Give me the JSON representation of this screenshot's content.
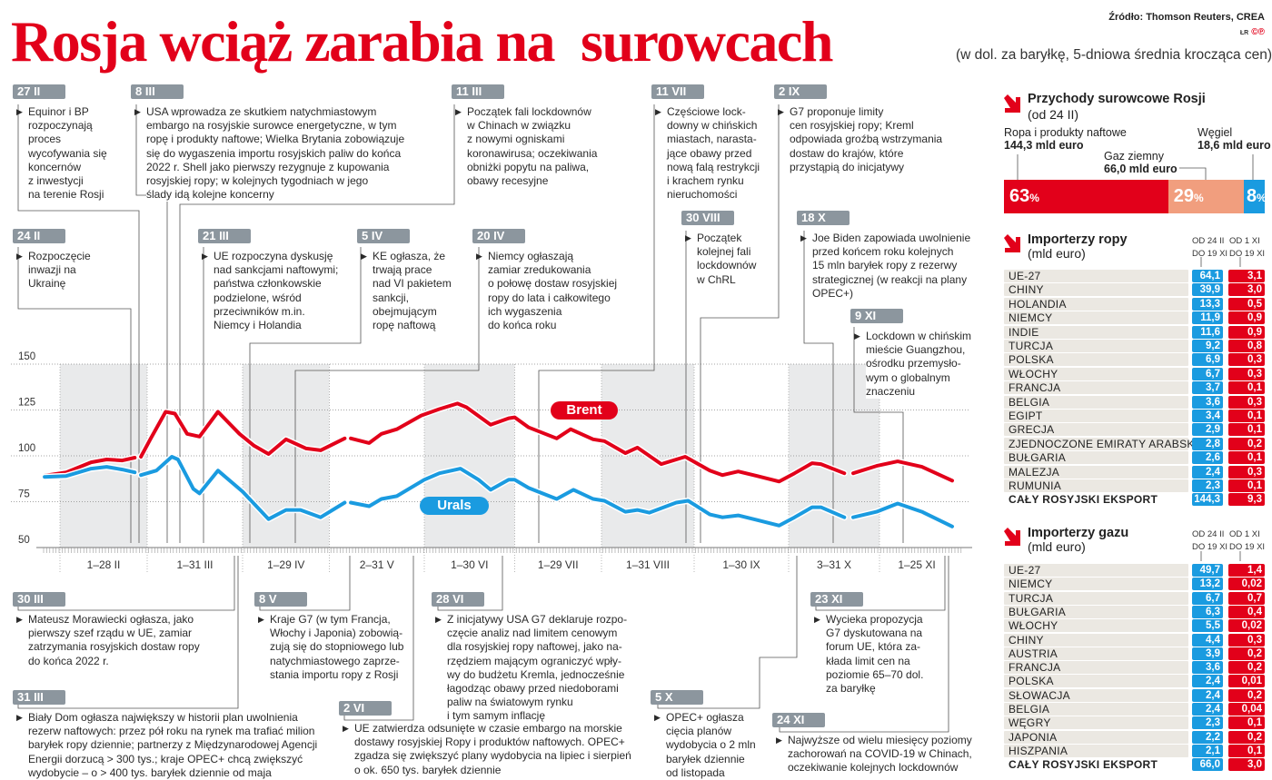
{
  "title": "Rosja wciąż zarabia na  surowcach",
  "subtitle": "(w dol. za baryłkę, 5-dniowa średnia krocząca cen)",
  "source": "Źródło: Thomson Reuters, CREA",
  "logo": {
    "initials": "ŁR",
    "mark": "©℗"
  },
  "colors": {
    "brent": "#e2001a",
    "urals": "#1a9be0",
    "gas": "#f19e7e",
    "tag": "#8c969e"
  },
  "chart_data": {
    "type": "line",
    "title": "",
    "xlabel": "",
    "ylabel": "",
    "ylim": [
      50,
      150
    ],
    "yticks": [
      "150",
      "125",
      "100",
      "75",
      "50"
    ],
    "grid": true,
    "month_labels": [
      "1–28 II",
      "1–31 III",
      "1–29 IV",
      "2–31 V",
      "1–30 VI",
      "1–29 VII",
      "1–31 VIII",
      "1–30 IX",
      "3–31 X",
      "1–25 XI"
    ],
    "series": [
      {
        "name": "Brent",
        "color": "#e2001a",
        "segments": [
          [
            [
              "27.01",
              89.2
            ],
            [
              "03.02",
              91
            ],
            [
              "11.02",
              96.5
            ],
            [
              "16.02",
              98
            ],
            [
              "21.02",
              97.5
            ],
            [
              "25.02",
              99
            ]
          ],
          [
            [
              "27.02",
              99.5
            ],
            [
              "02.03",
              109
            ],
            [
              "07.03",
              124
            ],
            [
              "10.03",
              123
            ],
            [
              "14.03",
              112
            ],
            [
              "18.03",
              110.5
            ],
            [
              "24.03",
              124
            ],
            [
              "31.03",
              112
            ],
            [
              "05.04",
              105.5
            ],
            [
              "10.04",
              101
            ],
            [
              "16.04",
              109
            ],
            [
              "23.04",
              104
            ],
            [
              "28.04",
              103
            ],
            [
              "06.05",
              109.5
            ]
          ],
          [
            [
              "08.05",
              109.5
            ],
            [
              "14.05",
              107
            ],
            [
              "18.05",
              112
            ],
            [
              "23.05",
              114.5
            ],
            [
              "31.05",
              122
            ],
            [
              "06.06",
              125.5
            ],
            [
              "12.06",
              128.5
            ],
            [
              "15.06",
              126.5
            ],
            [
              "23.06",
              117
            ],
            [
              "29.06",
              120.5
            ],
            [
              "01.07",
              121
            ],
            [
              "06.07",
              115.5
            ],
            [
              "16.07",
              109.5
            ],
            [
              "21.07",
              114.5
            ],
            [
              "29.07",
              109
            ],
            [
              "02.08",
              108
            ],
            [
              "09.08",
              101.5
            ],
            [
              "13.08",
              104.5
            ],
            [
              "21.08",
              95.5
            ],
            [
              "29.08",
              99.5
            ],
            [
              "06.09",
              92
            ],
            [
              "10.09",
              89.5
            ],
            [
              "15.09",
              91.5
            ],
            [
              "21.09",
              89
            ],
            [
              "28.09",
              86
            ],
            [
              "03.10",
              90.5
            ],
            [
              "09.10",
              96
            ],
            [
              "12.10",
              95.5
            ],
            [
              "20.10",
              90.5
            ]
          ],
          [
            [
              "23.10",
              90.5
            ],
            [
              "31.10",
              94.5
            ],
            [
              "07.11",
              97
            ],
            [
              "15.11",
              94
            ],
            [
              "25.11",
              86.5
            ]
          ]
        ]
      },
      {
        "name": "Urals",
        "color": "#1a9be0",
        "segments": [
          [
            [
              "27.01",
              88.5
            ],
            [
              "03.02",
              89
            ],
            [
              "11.02",
              93
            ],
            [
              "16.02",
              94
            ],
            [
              "21.02",
              92.5
            ],
            [
              "25.02",
              91
            ]
          ],
          [
            [
              "27.02",
              89.5
            ],
            [
              "04.03",
              92
            ],
            [
              "09.03",
              99.5
            ],
            [
              "11.03",
              98
            ],
            [
              "16.03",
              82
            ],
            [
              "18.03",
              79.5
            ],
            [
              "24.03",
              92
            ],
            [
              "01.04",
              80.5
            ],
            [
              "10.04",
              65.5
            ],
            [
              "16.04",
              70.5
            ],
            [
              "21.04",
              70.5
            ],
            [
              "28.04",
              66.5
            ],
            [
              "06.05",
              74.5
            ]
          ],
          [
            [
              "08.05",
              74.5
            ],
            [
              "14.05",
              72.5
            ],
            [
              "18.05",
              76.5
            ],
            [
              "23.05",
              78
            ],
            [
              "01.06",
              87
            ],
            [
              "06.06",
              90.5
            ],
            [
              "13.06",
              93
            ],
            [
              "19.06",
              87
            ],
            [
              "23.06",
              81.5
            ],
            [
              "29.06",
              87
            ],
            [
              "01.07",
              87
            ],
            [
              "06.07",
              82.5
            ],
            [
              "16.07",
              76.5
            ],
            [
              "22.07",
              81.5
            ],
            [
              "29.07",
              76.5
            ],
            [
              "02.08",
              75.5
            ],
            [
              "09.08",
              69.5
            ],
            [
              "13.08",
              70.5
            ],
            [
              "17.08",
              69
            ],
            [
              "26.08",
              74.5
            ],
            [
              "30.08",
              75.5
            ],
            [
              "06.09",
              68
            ],
            [
              "10.09",
              66.5
            ],
            [
              "15.09",
              67.5
            ],
            [
              "21.09",
              65
            ],
            [
              "28.09",
              62
            ],
            [
              "03.10",
              66.5
            ],
            [
              "09.10",
              72
            ],
            [
              "12.10",
              72
            ],
            [
              "20.10",
              66.5
            ]
          ],
          [
            [
              "23.10",
              66.5
            ],
            [
              "31.10",
              69.5
            ],
            [
              "07.11",
              74
            ],
            [
              "15.11",
              69.5
            ],
            [
              "25.11",
              61.5
            ]
          ]
        ]
      }
    ]
  },
  "annotations_top": [
    {
      "date": "27 II",
      "text": "Equinor i BP\nrozpoczynają\nproces\nwycofywania się\nkoncernów\nz inwestycji\nna terenie Rosji"
    },
    {
      "date": "8 III",
      "text": "USA wprowadza ze skutkiem natychmiastowym\nembargo na rosyjskie surowce energetyczne, w tym\nropę i produkty naftowe; Wielka Brytania zobowiązuje\nsię do wygaszenia importu rosyjskich paliw do końca\n2022 r. Shell jako pierwszy rezygnuje z kupowania\nrosyjskiej ropy; w kolejnych tygodniach w jego\nślady idą kolejne koncerny"
    },
    {
      "date": "11 III",
      "text": "Początek fali lockdownów\nw Chinach w związku\nz nowymi ogniskami\nkoronawirusa; oczekiwania\nobniżki popytu na paliwa,\nobawy recesyjne"
    },
    {
      "date": "11 VII",
      "text": "Częściowe lock-\ndowny w chińskich\nmiastach, narasta-\njące obawy przed\nnową falą restrykcji\ni krachem rynku\nnieruchomości"
    },
    {
      "date": "2 IX",
      "text": "G7 proponuje limity\ncen rosyjskiej ropy; Kreml\nodpowiada groźbą wstrzymania\ndostaw do krajów, które\nprzystąpią do inicjatywy"
    },
    {
      "date": "24 II",
      "text": "Rozpoczęcie\ninwazji na\nUkrainę"
    },
    {
      "date": "21 III",
      "text": "UE rozpoczyna dyskusję\nnad sankcjami naftowymi;\npaństwa członkowskie\npodzielone, wśród\nprzeciwników m.in.\nNiemcy i Holandia"
    },
    {
      "date": "5 IV",
      "text": "KE ogłasza, że\ntrwają prace\nnad VI pakietem\nsankcji,\nobejmującym\nropę naftową"
    },
    {
      "date": "20 IV",
      "text": "Niemcy ogłaszają\nzamiar zredukowania\no połowę dostaw rosyjskiej\nropy do lata i całkowitego\nich wygaszenia\ndo końca roku"
    },
    {
      "date": "30 VIII",
      "text": "Początek\nkolejnej fali\nlockdownów\nw ChRL"
    },
    {
      "date": "18 X",
      "text": "Joe Biden zapowiada uwolnienie\nprzed końcem roku kolejnych\n15 mln baryłek ropy z rezerwy\nstrategicznej (w reakcji na plany\nOPEC+)"
    },
    {
      "date": "9 XI",
      "text": "Lockdown w chińskim\nmieście Guangzhou,\nośrodku przemysło-\nwym o globalnym\nznaczeniu"
    }
  ],
  "annotations_bottom": [
    {
      "date": "30 III",
      "text": "Mateusz Morawiecki ogłasza, jako\npierwszy szef rządu w UE, zamiar\nzatrzymania rosyjskich dostaw ropy\ndo końca 2022 r."
    },
    {
      "date": "31 III",
      "text": "Biały Dom ogłasza największy w historii plan uwolnienia\nrezerw naftowych: przez pół roku na rynek ma trafiać milion\nbaryłek ropy dziennie; partnerzy z Międzynarodowej Agencji\nEnergii dorzucą > 300 tys.; kraje OPEC+ chcą zwiększyć\nwydobycie – o > 400 tys. baryłek dziennie od maja"
    },
    {
      "date": "8 V",
      "text": "Kraje G7 (w tym Francja,\nWłochy i Japonia) zobowią-\nzują się do stopniowego lub\nnatychmiastowego zaprze-\nstania importu ropy z Rosji"
    },
    {
      "date": "28 VI",
      "text": "Z inicjatywy USA G7 deklaruje rozpo-\nczęcie analiz nad limitem cenowym\ndla rosyjskiej ropy naftowej, jako na-\nrzędziem mającym ograniczyć wpły-\nwy do budżetu Kremla, jednocześnie\nłagodząc obawy przed niedoborami\npaliw na światowym rynku\ni tym samym inflację"
    },
    {
      "date": "2 VI",
      "text": "UE zatwierdza odsunięte w czasie embargo na morskie\ndostawy rosyjskiej Ropy i produktów naftowych. OPEC+\nzgadza się zwiększyć plany wydobycia na lipiec i sierpień\no ok. 650 tys. baryłek dziennie"
    },
    {
      "date": "5 X",
      "text": "OPEC+ ogłasza\ncięcia planów\nwydobycia o 2 mln\nbaryłek dziennie\nod listopada"
    },
    {
      "date": "23 XI",
      "text": "Wycieka propozycja\nG7 dyskutowana na\nforum UE, która za-\nkłada limit cen na\npoziomie 65–70 dol.\nza baryłkę"
    },
    {
      "date": "24 XI",
      "text": "Najwyższe od wielu miesięcy poziomy\nzachorowań na COVID-19 w Chinach,\noczekiwanie kolejnych lockdownów"
    }
  ],
  "legend": {
    "brent": "Brent",
    "urals": "Urals"
  },
  "revenue": {
    "title": "Przychody surowcowe Rosji",
    "subtitle": "(od 24 II)",
    "items": [
      {
        "label": "Ropa i produkty naftowe",
        "value": "144,3 mld euro",
        "pct": 63,
        "pct_label": "63",
        "color": "#e2001a"
      },
      {
        "label": "Gaz ziemny",
        "value": "66,0 mld euro",
        "pct": 29,
        "pct_label": "29",
        "color": "#f19e7e"
      },
      {
        "label": "Węgiel",
        "value": "18,6 mld euro",
        "pct": 8,
        "pct_label": "8",
        "color": "#1a9be0"
      }
    ],
    "pct_sign": "%"
  },
  "oil": {
    "title": "Importerzy ropy",
    "unit": "(mld euro)",
    "col_a": "OD 24 II\nDO 19 XI",
    "col_b": "OD 1 XI\nDO 19 XI",
    "rows": [
      {
        "country": "UE-27",
        "a": "64,1",
        "b": "3,1"
      },
      {
        "country": "CHINY",
        "a": "39,9",
        "b": "3,0"
      },
      {
        "country": "HOLANDIA",
        "a": "13,3",
        "b": "0,5"
      },
      {
        "country": "NIEMCY",
        "a": "11,9",
        "b": "0,9"
      },
      {
        "country": "INDIE",
        "a": "11,6",
        "b": "0,9"
      },
      {
        "country": "TURCJA",
        "a": "9,2",
        "b": "0,8"
      },
      {
        "country": "POLSKA",
        "a": "6,9",
        "b": "0,3"
      },
      {
        "country": "WŁOCHY",
        "a": "6,7",
        "b": "0,3"
      },
      {
        "country": "FRANCJA",
        "a": "3,7",
        "b": "0,1"
      },
      {
        "country": "BELGIA",
        "a": "3,6",
        "b": "0,3"
      },
      {
        "country": "EGIPT",
        "a": "3,4",
        "b": "0,1"
      },
      {
        "country": "GRECJA",
        "a": "2,9",
        "b": "0,1"
      },
      {
        "country": "ZJEDNOCZONE EMIRATY ARABSKIE",
        "a": "2,8",
        "b": "0,2"
      },
      {
        "country": "BUŁGARIA",
        "a": "2,6",
        "b": "0,1"
      },
      {
        "country": "MALEZJA",
        "a": "2,4",
        "b": "0,3"
      },
      {
        "country": "RUMUNIA",
        "a": "2,3",
        "b": "0,1"
      },
      {
        "country": "CAŁY ROSYJSKI EKSPORT",
        "a": "144,3",
        "b": "9,3",
        "total": true
      }
    ]
  },
  "gas": {
    "title": "Importerzy gazu",
    "unit": "(mld euro)",
    "col_a": "OD 24 II\nDO 19 XI",
    "col_b": "OD 1 XI\nDO 19 XI",
    "rows": [
      {
        "country": "UE-27",
        "a": "49,7",
        "b": "1,4"
      },
      {
        "country": "NIEMCY",
        "a": "13,2",
        "b": "0,02"
      },
      {
        "country": "TURCJA",
        "a": "6,7",
        "b": "0,7"
      },
      {
        "country": "BUŁGARIA",
        "a": "6,3",
        "b": "0,4"
      },
      {
        "country": "WŁOCHY",
        "a": "5,5",
        "b": "0,02"
      },
      {
        "country": "CHINY",
        "a": "4,4",
        "b": "0,3"
      },
      {
        "country": "AUSTRIA",
        "a": "3,9",
        "b": "0,2"
      },
      {
        "country": "FRANCJA",
        "a": "3,6",
        "b": "0,2"
      },
      {
        "country": "POLSKA",
        "a": "2,4",
        "b": "0,01"
      },
      {
        "country": "SŁOWACJA",
        "a": "2,4",
        "b": "0,2"
      },
      {
        "country": "BELGIA",
        "a": "2,4",
        "b": "0,04"
      },
      {
        "country": "WĘGRY",
        "a": "2,3",
        "b": "0,1"
      },
      {
        "country": "JAPONIA",
        "a": "2,2",
        "b": "0,2"
      },
      {
        "country": "HISZPANIA",
        "a": "2,1",
        "b": "0,1"
      },
      {
        "country": "CAŁY ROSYJSKI EKSPORT",
        "a": "66,0",
        "b": "3,0",
        "total": true
      }
    ]
  }
}
